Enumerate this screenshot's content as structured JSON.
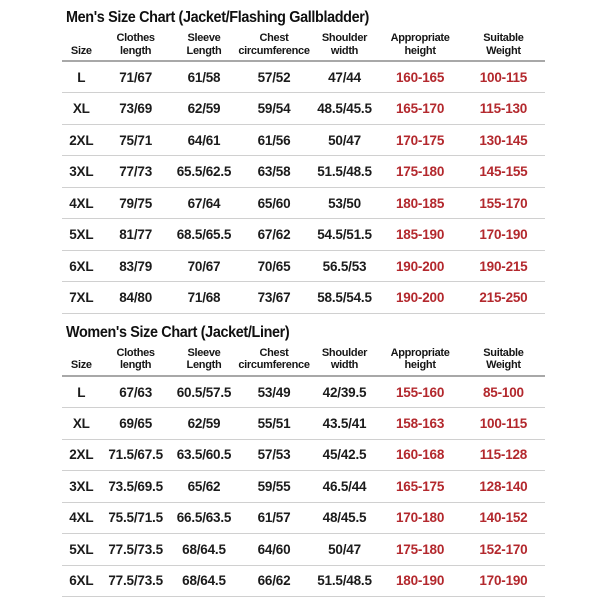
{
  "colors": {
    "background": "#ffffff",
    "text": "#1b1b1b",
    "accent_red": "#b3282d",
    "header_rule": "#a8a8a8",
    "row_rule": "#d0d0d0"
  },
  "chart_data": [
    {
      "type": "table",
      "title": "Men's Size Chart (Jacket/Flashing Gallbladder)",
      "columns": [
        "Size",
        "Clothes\nlength",
        "Sleeve\nLength",
        "Chest\ncircumference",
        "Shoulder\nwidth",
        "Appropriate\nheight",
        "Suitable\nWeight"
      ],
      "red_columns": [
        5,
        6
      ],
      "rows": [
        [
          "L",
          "71/67",
          "61/58",
          "57/52",
          "47/44",
          "160-165",
          "100-115"
        ],
        [
          "XL",
          "73/69",
          "62/59",
          "59/54",
          "48.5/45.5",
          "165-170",
          "115-130"
        ],
        [
          "2XL",
          "75/71",
          "64/61",
          "61/56",
          "50/47",
          "170-175",
          "130-145"
        ],
        [
          "3XL",
          "77/73",
          "65.5/62.5",
          "63/58",
          "51.5/48.5",
          "175-180",
          "145-155"
        ],
        [
          "4XL",
          "79/75",
          "67/64",
          "65/60",
          "53/50",
          "180-185",
          "155-170"
        ],
        [
          "5XL",
          "81/77",
          "68.5/65.5",
          "67/62",
          "54.5/51.5",
          "185-190",
          "170-190"
        ],
        [
          "6XL",
          "83/79",
          "70/67",
          "70/65",
          "56.5/53",
          "190-200",
          "190-215"
        ],
        [
          "7XL",
          "84/80",
          "71/68",
          "73/67",
          "58.5/54.5",
          "190-200",
          "215-250"
        ]
      ]
    },
    {
      "type": "table",
      "title": "Women's Size Chart (Jacket/Liner)",
      "columns": [
        "Size",
        "Clothes\nlength",
        "Sleeve\nLength",
        "Chest\ncircumference",
        "Shoulder\nwidth",
        "Appropriate\nheight",
        "Suitable\nWeight"
      ],
      "red_columns": [
        5,
        6
      ],
      "rows": [
        [
          "L",
          "67/63",
          "60.5/57.5",
          "53/49",
          "42/39.5",
          "155-160",
          "85-100"
        ],
        [
          "XL",
          "69/65",
          "62/59",
          "55/51",
          "43.5/41",
          "158-163",
          "100-115"
        ],
        [
          "2XL",
          "71.5/67.5",
          "63.5/60.5",
          "57/53",
          "45/42.5",
          "160-168",
          "115-128"
        ],
        [
          "3XL",
          "73.5/69.5",
          "65/62",
          "59/55",
          "46.5/44",
          "165-175",
          "128-140"
        ],
        [
          "4XL",
          "75.5/71.5",
          "66.5/63.5",
          "61/57",
          "48/45.5",
          "170-180",
          "140-152"
        ],
        [
          "5XL",
          "77.5/73.5",
          "68/64.5",
          "64/60",
          "50/47",
          "175-180",
          "152-170"
        ],
        [
          "6XL",
          "77.5/73.5",
          "68/64.5",
          "66/62",
          "51.5/48.5",
          "180-190",
          "170-190"
        ]
      ]
    }
  ]
}
